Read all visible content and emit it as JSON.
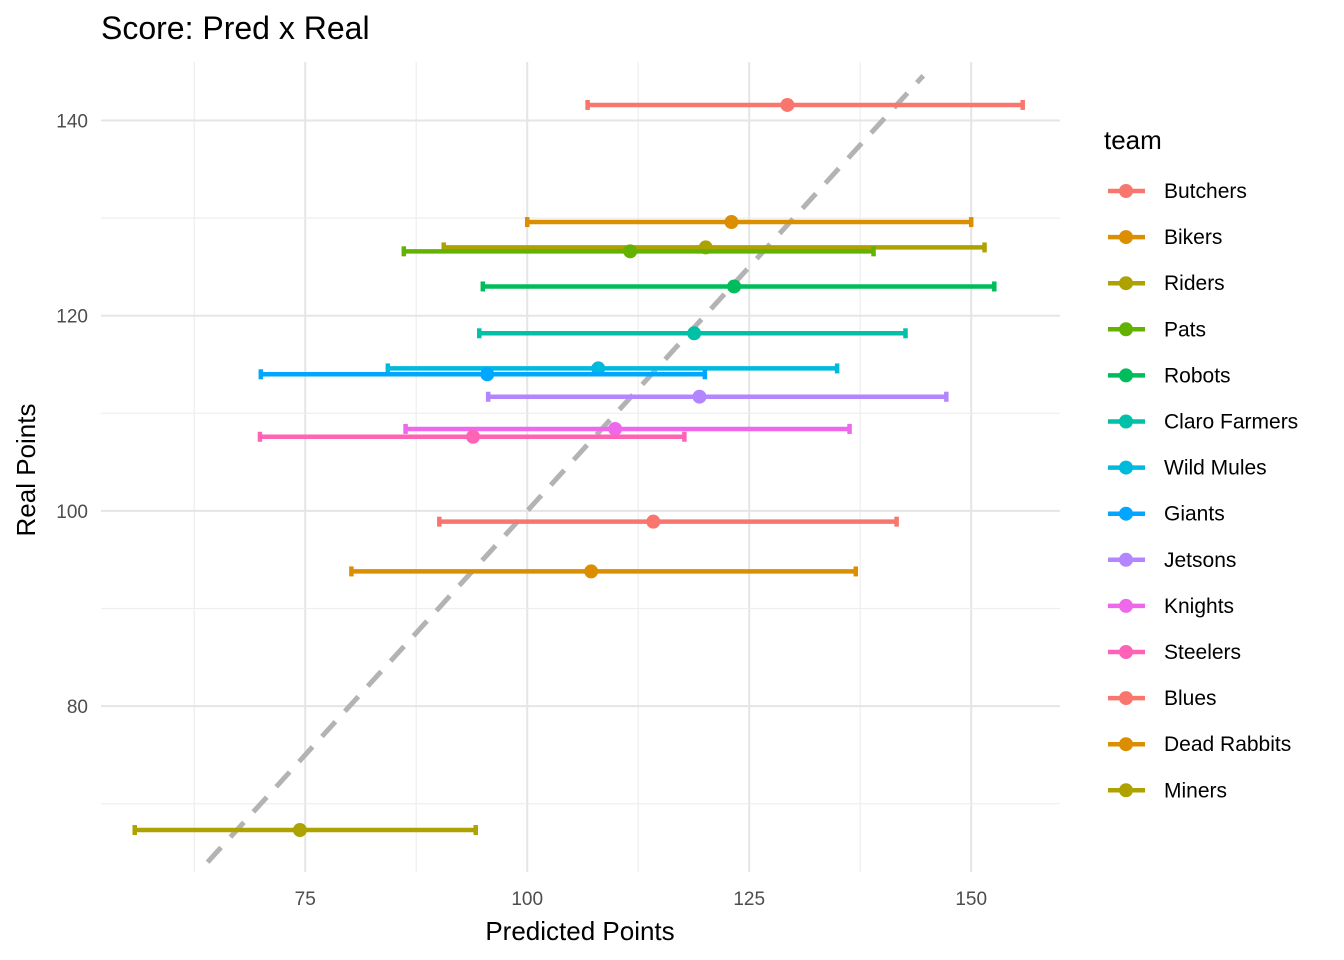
{
  "chart_data": {
    "type": "scatter",
    "title": "Score: Pred x Real",
    "xlabel": "Predicted Points",
    "ylabel": "Real Points",
    "xlim": [
      52,
      160
    ],
    "ylim": [
      63,
      146
    ],
    "xticks": [
      75,
      100,
      125,
      150
    ],
    "yticks": [
      80,
      100,
      120,
      140
    ],
    "reference_line": {
      "slope": 1,
      "intercept": 0,
      "style": "dashed",
      "color": "#b3b3b3"
    },
    "grid": true,
    "legend": {
      "title": "team",
      "placement": "right"
    },
    "series": [
      {
        "name": "Butchers",
        "color": "#F8766D",
        "x": 129.3,
        "y": 141.6,
        "xmin": 106.8,
        "xmax": 155.8
      },
      {
        "name": "Bikers",
        "color": "#DB8E00",
        "x": 123.0,
        "y": 129.6,
        "xmin": 100.0,
        "xmax": 150.0
      },
      {
        "name": "Riders",
        "color": "#AEA200",
        "x": 120.1,
        "y": 127.0,
        "xmin": 90.6,
        "xmax": 151.5
      },
      {
        "name": "Pats",
        "color": "#64B200",
        "x": 111.6,
        "y": 126.6,
        "xmin": 86.1,
        "xmax": 139.0
      },
      {
        "name": "Robots",
        "color": "#00BD5C",
        "x": 123.3,
        "y": 123.0,
        "xmin": 95.0,
        "xmax": 152.6
      },
      {
        "name": "Claro Farmers",
        "color": "#00C1A7",
        "x": 118.8,
        "y": 118.2,
        "xmin": 94.6,
        "xmax": 142.6
      },
      {
        "name": "Wild Mules",
        "color": "#00BADE",
        "x": 108.0,
        "y": 114.6,
        "xmin": 84.3,
        "xmax": 134.9
      },
      {
        "name": "Giants",
        "color": "#00A6FF",
        "x": 95.5,
        "y": 114.0,
        "xmin": 70.0,
        "xmax": 120.0
      },
      {
        "name": "Jetsons",
        "color": "#B385FF",
        "x": 119.4,
        "y": 111.7,
        "xmin": 95.6,
        "xmax": 147.2
      },
      {
        "name": "Knights",
        "color": "#EF67EB",
        "x": 109.9,
        "y": 108.4,
        "xmin": 86.3,
        "xmax": 136.3
      },
      {
        "name": "Steelers",
        "color": "#FF63B6",
        "x": 93.9,
        "y": 107.6,
        "xmin": 69.9,
        "xmax": 117.7
      },
      {
        "name": "Blues",
        "color": "#F8766D",
        "x": 114.2,
        "y": 98.9,
        "xmin": 90.1,
        "xmax": 141.6
      },
      {
        "name": "Dead Rabbits",
        "color": "#DB8E00",
        "x": 107.2,
        "y": 93.8,
        "xmin": 80.2,
        "xmax": 137.0
      },
      {
        "name": "Miners",
        "color": "#AEA200",
        "x": 74.4,
        "y": 67.3,
        "xmin": 55.8,
        "xmax": 94.2
      }
    ]
  }
}
